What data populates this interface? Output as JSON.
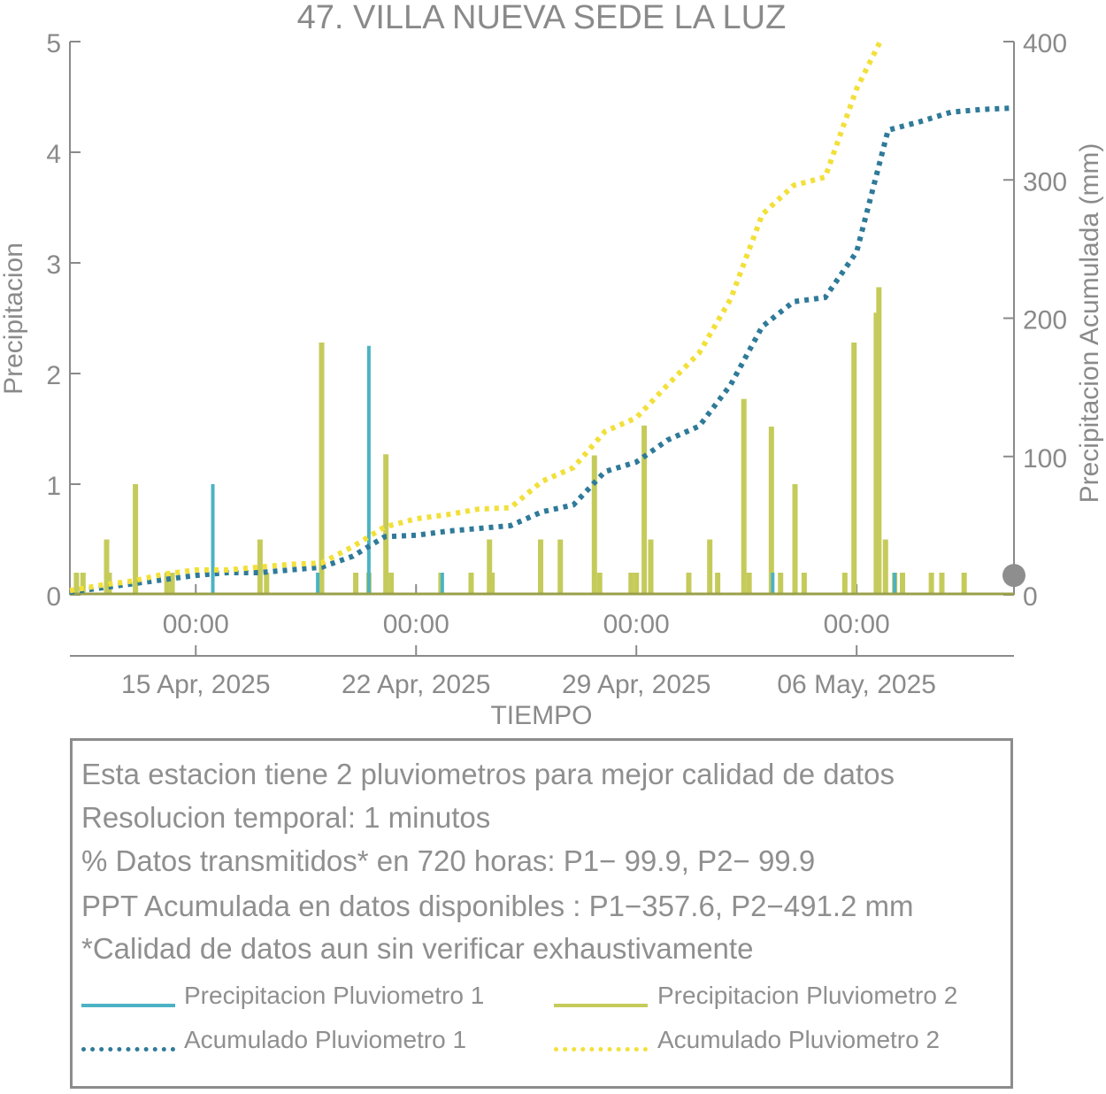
{
  "chart_data": {
    "type": "bar+line",
    "title": "47. VILLA NUEVA SEDE LA LUZ",
    "xlabel": "TIEMPO",
    "ylabel_left": "Precipitacion",
    "ylabel_right": "Precipitacion Acumulada (mm)",
    "ylim_left": [
      0,
      5
    ],
    "ylim_right": [
      0,
      400
    ],
    "yticks_left": [
      "0",
      "1",
      "2",
      "3",
      "4",
      "5"
    ],
    "yticks_right": [
      "0",
      "100",
      "200",
      "300",
      "400"
    ],
    "x_range_days": [
      "2025-04-11T00:00",
      "2025-05-11T00:00"
    ],
    "xticks_time": [
      "00:00",
      "00:00",
      "00:00",
      "00:00"
    ],
    "xticks_date": [
      "15 Apr, 2025",
      "22 Apr, 2025",
      "29 Apr, 2025",
      "06 May, 2025"
    ],
    "xtick_positions_date": [
      "2025-04-15",
      "2025-04-22",
      "2025-04-29",
      "2025-05-06"
    ],
    "series": [
      {
        "name": "Precipitacion Pluviometro 1",
        "kind": "bar",
        "axis": "left",
        "color": "#4bb3c4",
        "points": [
          [
            "2025-04-15T13:00",
            1.0
          ],
          [
            "2025-04-18T21:00",
            0.2
          ],
          [
            "2025-04-20T12:00",
            2.25
          ],
          [
            "2025-04-22T20:00",
            0.2
          ],
          [
            "2025-05-03T08:00",
            0.2
          ],
          [
            "2025-05-07T05:00",
            0.2
          ]
        ]
      },
      {
        "name": "Precipitacion Pluviometro 2",
        "kind": "bar",
        "axis": "left",
        "color": "#c5cb5a",
        "points": [
          [
            "2025-04-11T05:00",
            0.2
          ],
          [
            "2025-04-11T10:00",
            0.2
          ],
          [
            "2025-04-12T04:00",
            0.5
          ],
          [
            "2025-04-12T06:00",
            0.2
          ],
          [
            "2025-04-13T02:00",
            1.0
          ],
          [
            "2025-04-14T02:00",
            0.2
          ],
          [
            "2025-04-14T06:00",
            0.2
          ],
          [
            "2025-04-17T01:00",
            0.5
          ],
          [
            "2025-04-17T06:00",
            0.2
          ],
          [
            "2025-04-19T00:00",
            2.28
          ],
          [
            "2025-04-20T02:00",
            0.2
          ],
          [
            "2025-04-20T12:00",
            0.2
          ],
          [
            "2025-04-21T01:00",
            1.27
          ],
          [
            "2025-04-21T05:00",
            0.2
          ],
          [
            "2025-04-22T19:00",
            0.2
          ],
          [
            "2025-04-23T18:00",
            0.2
          ],
          [
            "2025-04-24T08:00",
            0.5
          ],
          [
            "2025-04-24T10:00",
            0.2
          ],
          [
            "2025-04-25T23:00",
            0.5
          ],
          [
            "2025-04-26T14:00",
            0.5
          ],
          [
            "2025-04-27T16:00",
            1.26
          ],
          [
            "2025-04-27T20:00",
            0.2
          ],
          [
            "2025-04-28T20:00",
            0.2
          ],
          [
            "2025-04-29T00:00",
            0.2
          ],
          [
            "2025-04-29T06:00",
            1.53
          ],
          [
            "2025-04-29T11:00",
            0.5
          ],
          [
            "2025-04-30T16:00",
            0.2
          ],
          [
            "2025-05-01T08:00",
            0.5
          ],
          [
            "2025-05-01T14:00",
            0.2
          ],
          [
            "2025-05-02T10:00",
            1.77
          ],
          [
            "2025-05-02T14:00",
            0.2
          ],
          [
            "2025-05-03T07:00",
            1.52
          ],
          [
            "2025-05-03T14:00",
            0.2
          ],
          [
            "2025-05-04T01:00",
            1.0
          ],
          [
            "2025-05-04T08:00",
            0.2
          ],
          [
            "2025-05-05T15:00",
            0.2
          ],
          [
            "2025-05-05T22:00",
            2.28
          ],
          [
            "2025-05-06T15:00",
            2.55
          ],
          [
            "2025-05-06T17:00",
            2.78
          ],
          [
            "2025-05-06T22:00",
            0.5
          ],
          [
            "2025-05-07T05:00",
            0.2
          ],
          [
            "2025-05-07T11:00",
            0.2
          ],
          [
            "2025-05-08T09:00",
            0.2
          ],
          [
            "2025-05-08T17:00",
            0.2
          ],
          [
            "2025-05-09T10:00",
            0.2
          ]
        ]
      },
      {
        "name": "Acumulado Pluviometro 1",
        "kind": "line",
        "axis": "right",
        "color": "#2f7a99",
        "points": [
          [
            "2025-04-11T00:00",
            2
          ],
          [
            "2025-04-12T00:00",
            5
          ],
          [
            "2025-04-13T00:00",
            8
          ],
          [
            "2025-04-14T00:00",
            11
          ],
          [
            "2025-04-15T00:00",
            14
          ],
          [
            "2025-04-16T00:00",
            16
          ],
          [
            "2025-04-17T00:00",
            16
          ],
          [
            "2025-04-18T00:00",
            18
          ],
          [
            "2025-04-19T00:00",
            20
          ],
          [
            "2025-04-20T00:00",
            28
          ],
          [
            "2025-04-21T00:00",
            42
          ],
          [
            "2025-04-22T00:00",
            43
          ],
          [
            "2025-04-23T00:00",
            46
          ],
          [
            "2025-04-24T00:00",
            48
          ],
          [
            "2025-04-25T00:00",
            50
          ],
          [
            "2025-04-26T00:00",
            60
          ],
          [
            "2025-04-27T00:00",
            65
          ],
          [
            "2025-04-28T00:00",
            89
          ],
          [
            "2025-04-29T00:00",
            96
          ],
          [
            "2025-04-30T00:00",
            112
          ],
          [
            "2025-05-01T00:00",
            122
          ],
          [
            "2025-05-02T00:00",
            152
          ],
          [
            "2025-05-03T00:00",
            194
          ],
          [
            "2025-05-04T00:00",
            212
          ],
          [
            "2025-05-05T00:00",
            215
          ],
          [
            "2025-05-06T00:00",
            248
          ],
          [
            "2025-05-07T00:00",
            336
          ],
          [
            "2025-05-08T00:00",
            342
          ],
          [
            "2025-05-09T00:00",
            349
          ],
          [
            "2025-05-10T00:00",
            351
          ],
          [
            "2025-05-11T00:00",
            352
          ]
        ]
      },
      {
        "name": "Acumulado Pluviometro 2",
        "kind": "line",
        "axis": "right",
        "color": "#f2e03a",
        "points": [
          [
            "2025-04-11T00:00",
            3
          ],
          [
            "2025-04-12T00:00",
            7
          ],
          [
            "2025-04-13T00:00",
            10
          ],
          [
            "2025-04-14T00:00",
            15
          ],
          [
            "2025-04-15T00:00",
            18
          ],
          [
            "2025-04-16T00:00",
            18
          ],
          [
            "2025-04-17T00:00",
            20
          ],
          [
            "2025-04-18T00:00",
            22
          ],
          [
            "2025-04-19T00:00",
            23
          ],
          [
            "2025-04-20T00:00",
            35
          ],
          [
            "2025-04-21T00:00",
            49
          ],
          [
            "2025-04-22T00:00",
            55
          ],
          [
            "2025-04-23T00:00",
            58
          ],
          [
            "2025-04-24T00:00",
            62
          ],
          [
            "2025-04-25T00:00",
            63
          ],
          [
            "2025-04-26T00:00",
            82
          ],
          [
            "2025-04-27T00:00",
            92
          ],
          [
            "2025-04-28T00:00",
            118
          ],
          [
            "2025-04-29T00:00",
            128
          ],
          [
            "2025-04-30T00:00",
            152
          ],
          [
            "2025-05-01T00:00",
            175
          ],
          [
            "2025-05-02T00:00",
            214
          ],
          [
            "2025-05-03T00:00",
            275
          ],
          [
            "2025-05-04T00:00",
            296
          ],
          [
            "2025-05-05T00:00",
            302
          ],
          [
            "2025-05-06T00:00",
            366
          ],
          [
            "2025-05-06T18:00",
            400
          ]
        ]
      }
    ],
    "marker_right_axis_value": 14,
    "marker_color": "#8e8e8e"
  },
  "info": {
    "lines": [
      "Esta estacion tiene 2 pluviometros para mejor calidad de datos",
      "Resolucion temporal: 1 minutos",
      "% Datos transmitidos* en 720 horas: P1− 99.9, P2− 99.9",
      "PPT Acumulada en datos disponibles : P1−357.6, P2−491.2 mm",
      "*Calidad de datos aun sin verificar exhaustivamente"
    ]
  },
  "legend": {
    "items": [
      {
        "label": "Precipitacion Pluviometro 1",
        "style": "solid",
        "color": "#4bb3c4"
      },
      {
        "label": "Precipitacion Pluviometro 2",
        "style": "solid",
        "color": "#c5cb5a"
      },
      {
        "label": "Acumulado Pluviometro 1",
        "style": "dotted",
        "color": "#2f7a99"
      },
      {
        "label": "Acumulado Pluviometro 2",
        "style": "dotted",
        "color": "#f2e03a"
      }
    ]
  }
}
